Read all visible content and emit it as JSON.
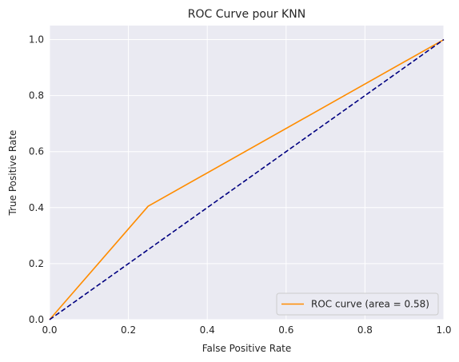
{
  "chart_data": {
    "type": "line",
    "title": "ROC Curve pour KNN",
    "xlabel": "False Positive Rate",
    "ylabel": "True Positive Rate",
    "xlim": [
      0.0,
      1.0
    ],
    "ylim": [
      0.0,
      1.05
    ],
    "x_ticks": [
      0.0,
      0.2,
      0.4,
      0.6,
      0.8,
      1.0
    ],
    "x_tick_labels": [
      "0.0",
      "0.2",
      "0.4",
      "0.6",
      "0.8",
      "1.0"
    ],
    "y_ticks": [
      0.0,
      0.2,
      0.4,
      0.6,
      0.8,
      1.0
    ],
    "y_tick_labels": [
      "0.0",
      "0.2",
      "0.4",
      "0.6",
      "0.8",
      "1.0"
    ],
    "grid": true,
    "legend_position": "lower-right",
    "series": [
      {
        "name": "ROC curve (area = 0.58)",
        "color": "#ff8c00",
        "style": "solid",
        "x": [
          0.0,
          0.25,
          1.0
        ],
        "y": [
          0.0,
          0.405,
          1.0
        ]
      },
      {
        "color": "#000080",
        "style": "dashed",
        "x": [
          0.0,
          1.0
        ],
        "y": [
          0.0,
          1.0
        ]
      }
    ],
    "background_color": "#eaeaf2",
    "grid_color": "#ffffff"
  }
}
